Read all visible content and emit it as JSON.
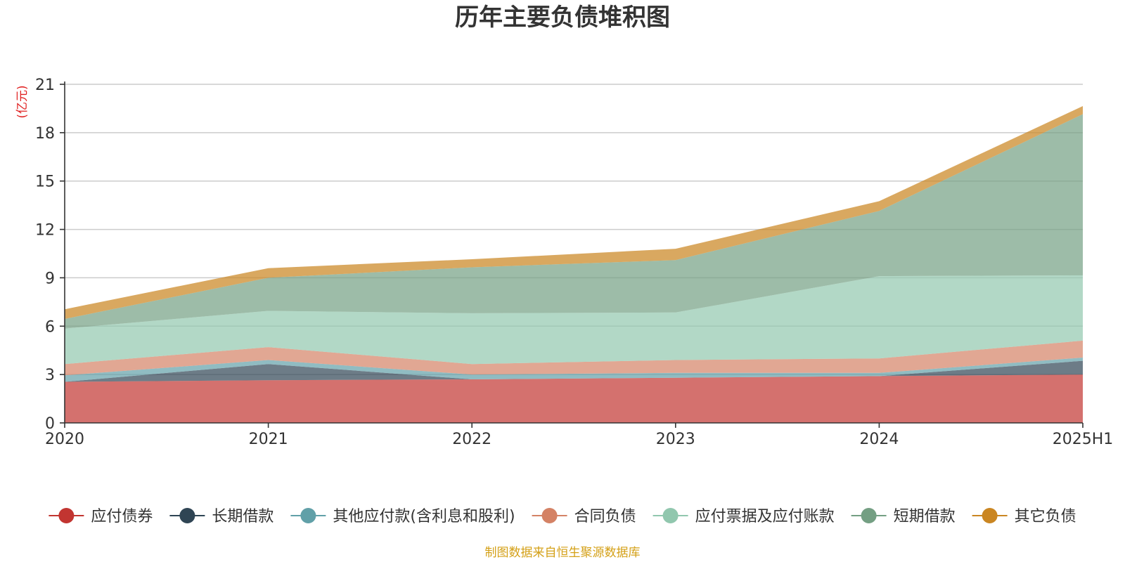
{
  "chart_data": {
    "type": "area",
    "stacked": true,
    "title": "历年主要负债堆积图",
    "y_unit": "(亿元)",
    "ylim": [
      0,
      21
    ],
    "y_ticks": [
      0,
      3,
      6,
      9,
      12,
      15,
      18,
      21
    ],
    "categories": [
      "2020",
      "2021",
      "2022",
      "2023",
      "2024",
      "2025H1"
    ],
    "series": [
      {
        "name": "应付债券",
        "color": "#c23531",
        "values": [
          2.55,
          2.65,
          2.7,
          2.8,
          2.9,
          3.0
        ]
      },
      {
        "name": "长期借款",
        "color": "#2f4554",
        "values": [
          0.0,
          1.0,
          0.0,
          0.0,
          0.0,
          0.85
        ]
      },
      {
        "name": "其他应付款(含利息和股利)",
        "color": "#61a0a8",
        "values": [
          0.4,
          0.25,
          0.3,
          0.3,
          0.2,
          0.2
        ]
      },
      {
        "name": "合同负债",
        "color": "#d48265",
        "values": [
          0.7,
          0.8,
          0.65,
          0.8,
          0.9,
          1.05
        ]
      },
      {
        "name": "应付票据及应付账款",
        "color": "#91c7ae",
        "values": [
          2.2,
          2.25,
          3.15,
          2.95,
          5.1,
          4.05
        ]
      },
      {
        "name": "短期借款",
        "color": "#749f83",
        "values": [
          0.6,
          2.05,
          2.85,
          3.25,
          4.05,
          10.0
        ]
      },
      {
        "name": "其它负债",
        "color": "#ca8622",
        "values": [
          0.6,
          0.6,
          0.5,
          0.7,
          0.6,
          0.5
        ]
      }
    ],
    "legend_position": "bottom",
    "grid": true,
    "source": "制图数据来自恒生聚源数据库"
  }
}
